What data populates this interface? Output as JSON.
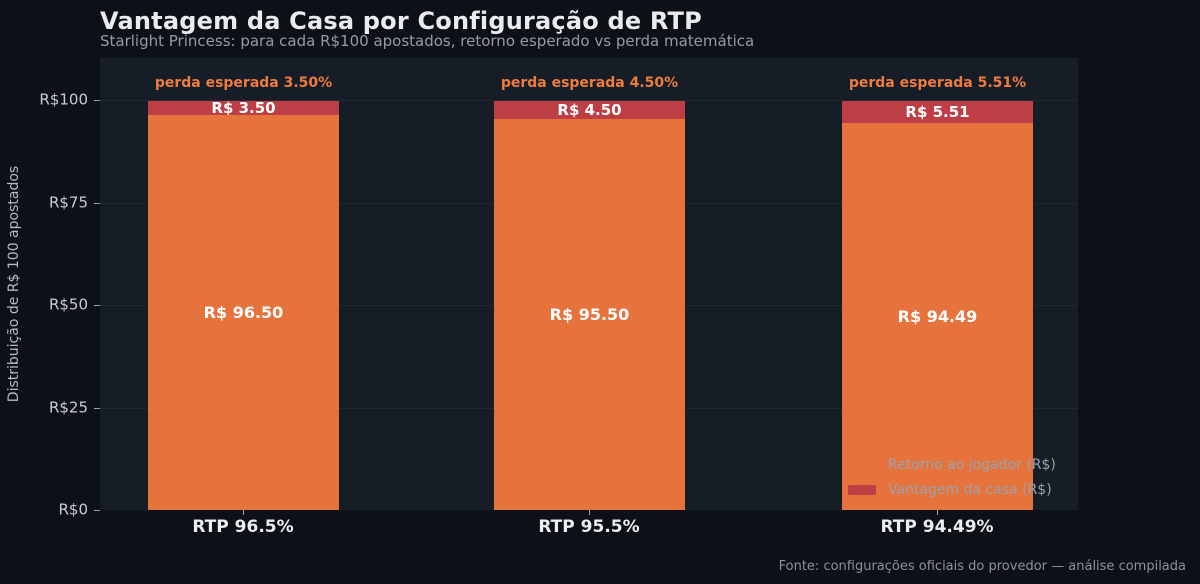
{
  "page": {
    "title": "Vantagem da Casa por Configuração de RTP",
    "subtitle": "Starlight Princess: para cada R$100 apostados, retorno esperado vs perda matemática",
    "footer": "Fonte: configurações oficiais do provedor — análise compilada"
  },
  "colors": {
    "background": "#0c1117",
    "plot_background": "#161d26",
    "player_return": "#e6733c",
    "house_edge": "#be3e46",
    "annotation_text": "#ef7c3e"
  },
  "chart_data": {
    "type": "bar",
    "stacked": true,
    "title": "Vantagem da Casa por Configuração de RTP",
    "subtitle": "Starlight Princess: para cada R$100 apostados, retorno esperado vs perda matemática",
    "ylabel": "Distribuição de R$ 100 apostados",
    "ylim": [
      0,
      100
    ],
    "yticks": [
      "R$0",
      "R$25",
      "R$50",
      "R$75",
      "R$100"
    ],
    "grid": "horizontal, faint",
    "categories": [
      "RTP 96.5%",
      "RTP 95.5%",
      "RTP 94.49%"
    ],
    "series": [
      {
        "name": "Retorno ao jogador (R$)",
        "color": "#e6733c",
        "values": [
          96.5,
          95.5,
          94.49
        ]
      },
      {
        "name": "Vantagem da casa (R$)",
        "color": "#be3e46",
        "values": [
          3.5,
          4.5,
          5.51
        ]
      }
    ],
    "bars": [
      {
        "category": "RTP 96.5%",
        "player_value": 96.5,
        "house_value": 3.5,
        "player_label": "R$ 96.50",
        "house_label": "R$ 3.50",
        "annotation": "perda esperada 3.50%"
      },
      {
        "category": "RTP 95.5%",
        "player_value": 95.5,
        "house_value": 4.5,
        "player_label": "R$ 95.50",
        "house_label": "R$ 4.50",
        "annotation": "perda esperada 4.50%"
      },
      {
        "category": "RTP 94.49%",
        "player_value": 94.49,
        "house_value": 5.51,
        "player_label": "R$ 94.49",
        "house_label": "R$ 5.51",
        "annotation": "perda esperada 5.51%"
      }
    ],
    "legend": {
      "position": "lower right",
      "items": [
        {
          "label": "Retorno ao jogador (R$)",
          "color": "#e6733c"
        },
        {
          "label": "Vantagem da casa (R$)",
          "color": "#be3e46"
        }
      ]
    }
  }
}
